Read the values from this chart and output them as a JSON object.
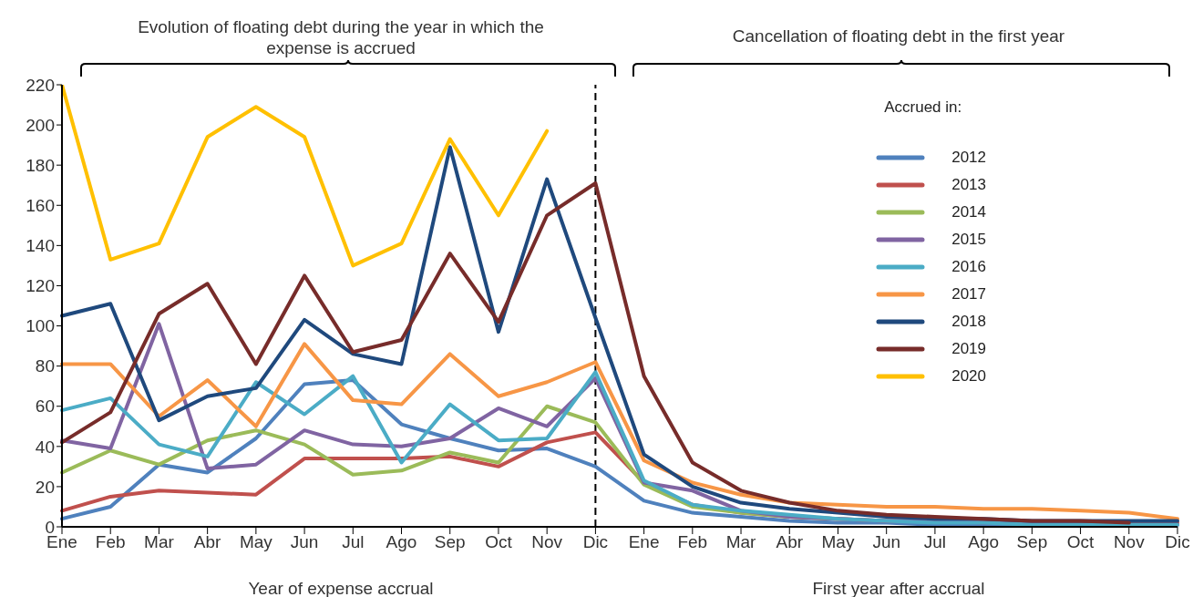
{
  "chart_data": {
    "type": "line",
    "xlabel": "Year of expense accrual",
    "legend_title": "Accrued in:",
    "annotations": [
      "Evolution of floating debt during the year in which the expense is accrued",
      "Cancellation of floating debt in the first year",
      "First year after accrual"
    ],
    "categories": [
      "Ene",
      "Feb",
      "Mar",
      "Abr",
      "May",
      "Jun",
      "Jul",
      "Ago",
      "Sep",
      "Oct",
      "Nov",
      "Dic",
      "Ene",
      "Feb",
      "Mar",
      "Abr",
      "May",
      "Jun",
      "Jul",
      "Ago",
      "Sep",
      "Oct",
      "Nov",
      "Dic"
    ],
    "series": [
      {
        "name": "2012",
        "color": "#4f81bd",
        "values": [
          4,
          10,
          31,
          27,
          44,
          71,
          73,
          51,
          44,
          38,
          39,
          30,
          13,
          7,
          5,
          3,
          2,
          2,
          1,
          1,
          1,
          1,
          1,
          1
        ]
      },
      {
        "name": "2013",
        "color": "#c0504d",
        "values": [
          8,
          15,
          18,
          17,
          16,
          34,
          34,
          34,
          35,
          30,
          42,
          47,
          22,
          11,
          7,
          5,
          4,
          3,
          3,
          3,
          2,
          2,
          2,
          2
        ]
      },
      {
        "name": "2014",
        "color": "#9bbb59",
        "values": [
          27,
          38,
          31,
          43,
          48,
          41,
          26,
          28,
          37,
          32,
          60,
          52,
          21,
          10,
          7,
          5,
          4,
          null,
          null,
          null,
          null,
          null,
          null,
          null
        ]
      },
      {
        "name": "2015",
        "color": "#8064a2",
        "values": [
          43,
          39,
          101,
          29,
          31,
          48,
          41,
          40,
          44,
          59,
          50,
          74,
          22,
          18,
          8,
          5,
          4,
          3,
          3,
          2,
          2,
          1,
          1,
          1
        ]
      },
      {
        "name": "2016",
        "color": "#4bacc6",
        "values": [
          58,
          64,
          41,
          35,
          72,
          56,
          75,
          32,
          61,
          43,
          44,
          77,
          23,
          11,
          8,
          6,
          4,
          3,
          2,
          2,
          1,
          1,
          1,
          1
        ]
      },
      {
        "name": "2017",
        "color": "#f79646",
        "values": [
          81,
          81,
          55,
          73,
          50,
          91,
          63,
          61,
          86,
          65,
          72,
          82,
          33,
          22,
          16,
          12,
          11,
          10,
          10,
          9,
          9,
          8,
          7,
          4
        ]
      },
      {
        "name": "2018",
        "color": "#1f497d",
        "values": [
          105,
          111,
          53,
          65,
          69,
          103,
          86,
          81,
          189,
          97,
          173,
          104,
          36,
          20,
          12,
          9,
          7,
          5,
          4,
          4,
          3,
          3,
          3,
          3
        ]
      },
      {
        "name": "2019",
        "color": "#772c2a",
        "values": [
          42,
          57,
          106,
          121,
          81,
          125,
          87,
          93,
          136,
          102,
          155,
          171,
          75,
          32,
          18,
          12,
          8,
          6,
          5,
          4,
          3,
          3,
          2,
          null
        ]
      },
      {
        "name": "2020",
        "color": "#ffc000",
        "values": [
          220,
          133,
          141,
          194,
          209,
          194,
          130,
          141,
          193,
          155,
          197,
          null,
          null,
          null,
          null,
          null,
          null,
          null,
          null,
          null,
          null,
          null,
          null,
          null
        ]
      }
    ],
    "ylim": [
      0,
      220
    ],
    "yticks": [
      0,
      20,
      40,
      60,
      80,
      100,
      120,
      140,
      160,
      180,
      200,
      220
    ],
    "ref_lines": [
      {
        "axis": "x",
        "value": "Dic",
        "color": "#000000",
        "line_style": "dashed"
      }
    ],
    "grid": false,
    "legend": "top right",
    "marker": "none",
    "line_style": "solid"
  }
}
